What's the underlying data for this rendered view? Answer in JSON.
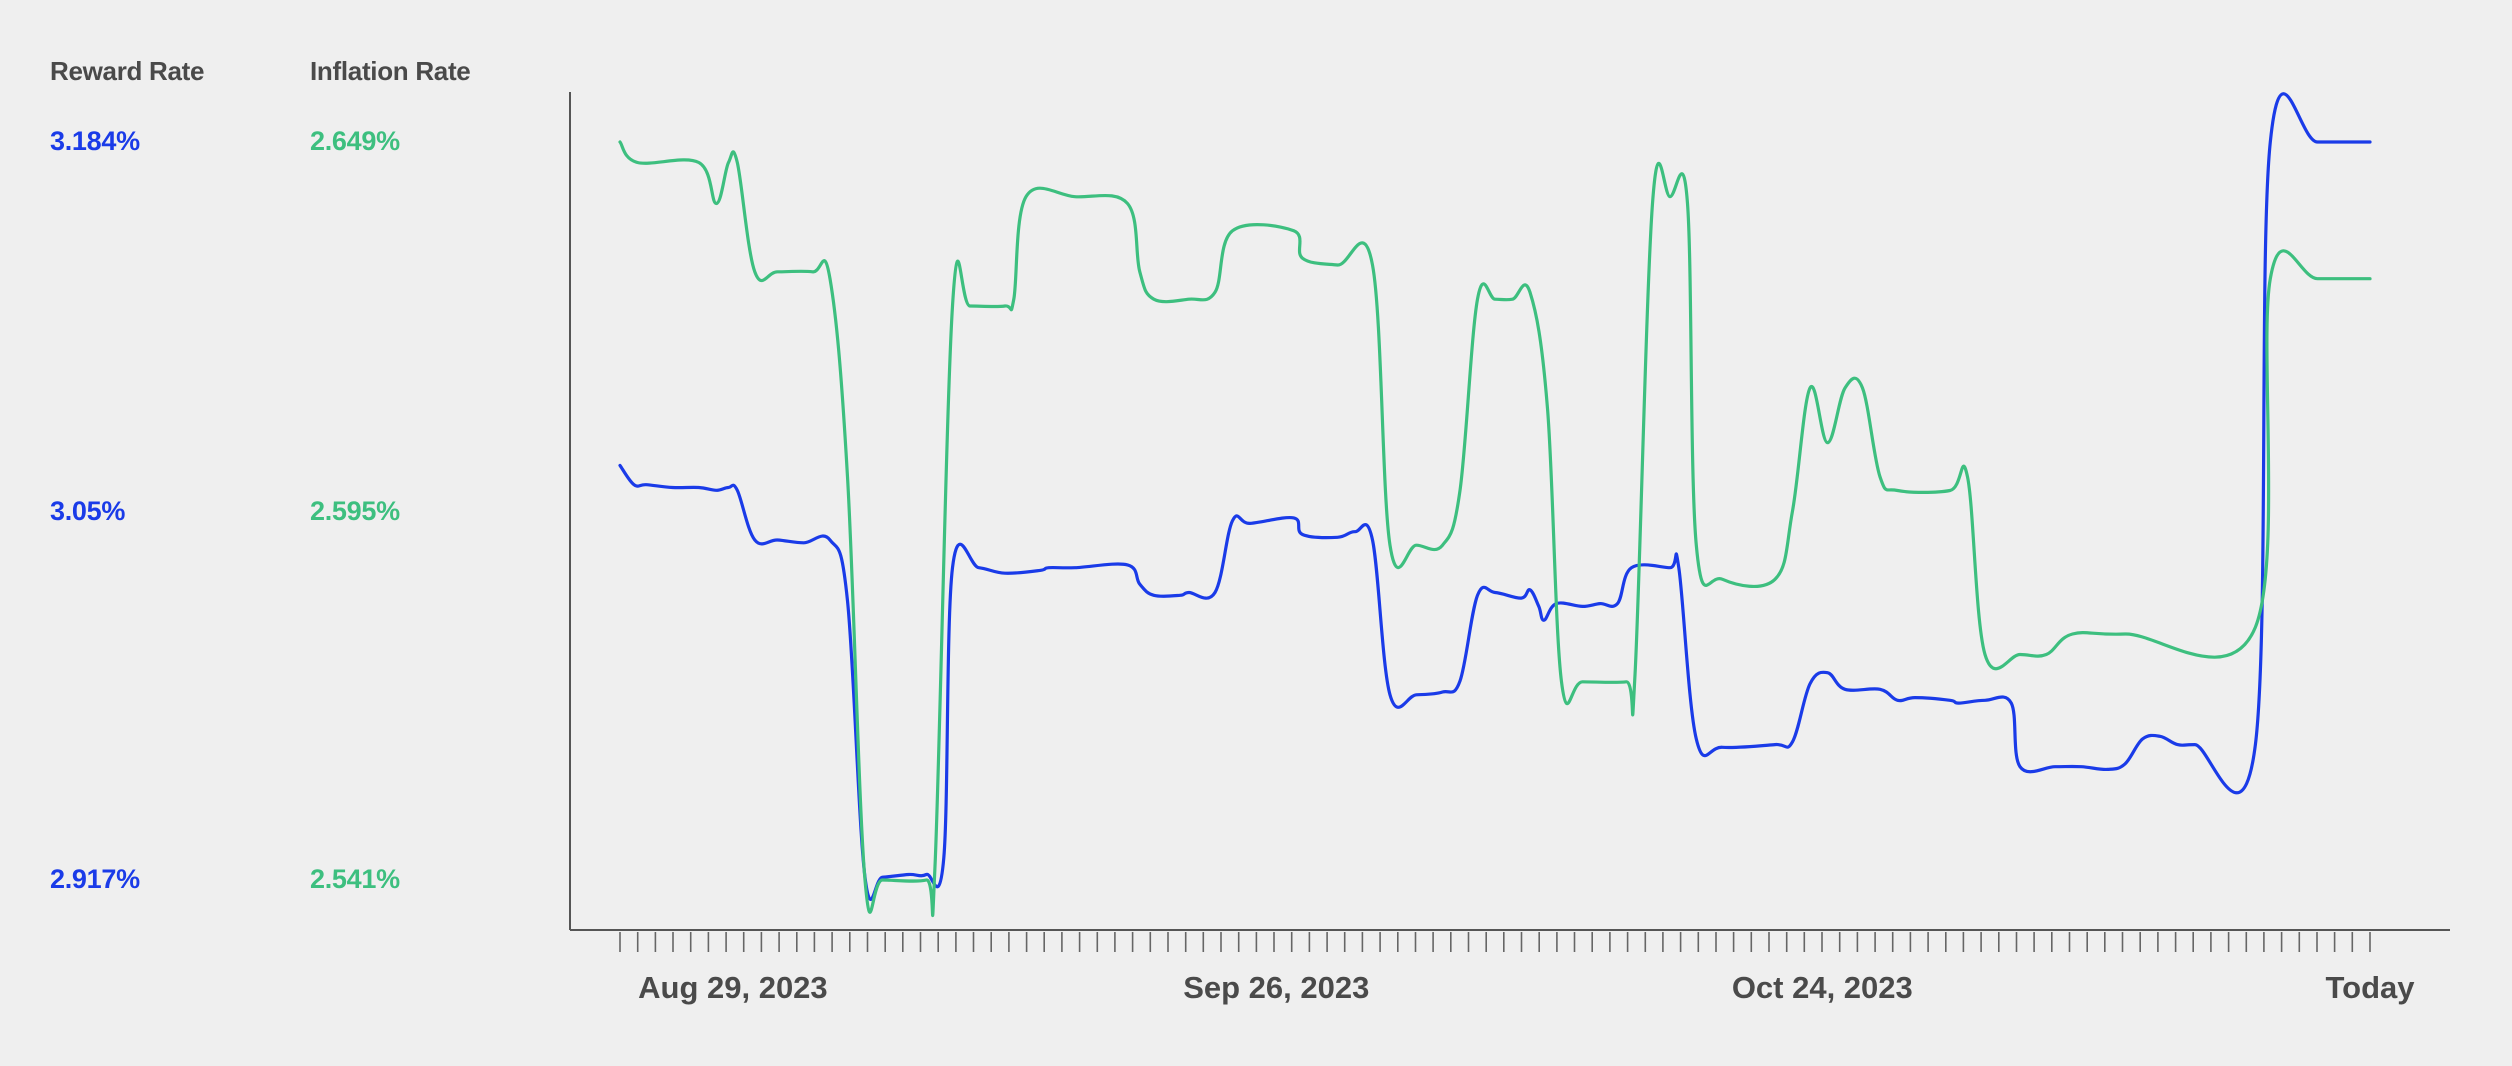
{
  "legend": {
    "reward_title": "Reward Rate",
    "inflation_title": "Inflation Rate"
  },
  "colors": {
    "reward": "#1a3be8",
    "inflation": "#3dbf7f",
    "axis": "#555555",
    "text": "#4a4a4a",
    "background": "#efefef"
  },
  "chart_data": {
    "type": "line",
    "x_labels": [
      "Aug 29, 2023",
      "Sep 26, 2023",
      "Oct 24, 2023",
      "Today"
    ],
    "x_label_positions": [
      0.0645,
      0.375,
      0.687,
      1.0
    ],
    "series": [
      {
        "name": "Reward Rate",
        "color": "#1a3be8",
        "ylim": [
          2.917,
          3.184
        ],
        "tick_labels": [
          "3.184%",
          "3.05%",
          "2.917%"
        ],
        "points": [
          [
            0.0,
            3.067
          ],
          [
            0.008,
            3.06
          ],
          [
            0.015,
            3.06
          ],
          [
            0.03,
            3.059
          ],
          [
            0.045,
            3.059
          ],
          [
            0.055,
            3.058
          ],
          [
            0.062,
            3.059
          ],
          [
            0.067,
            3.058
          ],
          [
            0.077,
            3.04
          ],
          [
            0.09,
            3.04
          ],
          [
            0.105,
            3.039
          ],
          [
            0.12,
            3.04
          ],
          [
            0.13,
            3.018
          ],
          [
            0.14,
            2.918
          ],
          [
            0.15,
            2.918
          ],
          [
            0.165,
            2.919
          ],
          [
            0.175,
            2.919
          ],
          [
            0.185,
            2.925
          ],
          [
            0.19,
            3.03
          ],
          [
            0.205,
            3.03
          ],
          [
            0.22,
            3.028
          ],
          [
            0.24,
            3.029
          ],
          [
            0.245,
            3.03
          ],
          [
            0.26,
            3.03
          ],
          [
            0.29,
            3.031
          ],
          [
            0.297,
            3.024
          ],
          [
            0.305,
            3.02
          ],
          [
            0.32,
            3.02
          ],
          [
            0.325,
            3.021
          ],
          [
            0.34,
            3.021
          ],
          [
            0.35,
            3.047
          ],
          [
            0.36,
            3.046
          ],
          [
            0.385,
            3.048
          ],
          [
            0.39,
            3.042
          ],
          [
            0.41,
            3.041
          ],
          [
            0.42,
            3.043
          ],
          [
            0.43,
            3.04
          ],
          [
            0.44,
            2.984
          ],
          [
            0.455,
            2.984
          ],
          [
            0.47,
            2.985
          ],
          [
            0.48,
            2.989
          ],
          [
            0.49,
            3.02
          ],
          [
            0.5,
            3.021
          ],
          [
            0.515,
            3.019
          ],
          [
            0.52,
            3.022
          ],
          [
            0.525,
            3.016
          ],
          [
            0.528,
            3.011
          ],
          [
            0.535,
            3.017
          ],
          [
            0.55,
            3.016
          ],
          [
            0.56,
            3.017
          ],
          [
            0.57,
            3.017
          ],
          [
            0.578,
            3.03
          ],
          [
            0.6,
            3.03
          ],
          [
            0.605,
            3.03
          ],
          [
            0.615,
            2.968
          ],
          [
            0.63,
            2.965
          ],
          [
            0.66,
            2.966
          ],
          [
            0.67,
            2.967
          ],
          [
            0.68,
            2.988
          ],
          [
            0.69,
            2.992
          ],
          [
            0.7,
            2.986
          ],
          [
            0.72,
            2.986
          ],
          [
            0.73,
            2.982
          ],
          [
            0.74,
            2.983
          ],
          [
            0.76,
            2.982
          ],
          [
            0.765,
            2.981
          ],
          [
            0.78,
            2.982
          ],
          [
            0.795,
            2.981
          ],
          [
            0.8,
            2.958
          ],
          [
            0.82,
            2.958
          ],
          [
            0.835,
            2.958
          ],
          [
            0.85,
            2.957
          ],
          [
            0.86,
            2.959
          ],
          [
            0.87,
            2.968
          ],
          [
            0.88,
            2.969
          ],
          [
            0.89,
            2.966
          ],
          [
            0.9,
            2.966
          ],
          [
            0.9345,
            2.966
          ],
          [
            0.943,
            3.184
          ],
          [
            0.97,
            3.184
          ],
          [
            1.0,
            3.184
          ]
        ]
      },
      {
        "name": "Inflation Rate",
        "color": "#3dbf7f",
        "ylim": [
          2.541,
          2.649
        ],
        "tick_labels": [
          "2.649%",
          "2.595%",
          "2.541%"
        ],
        "points": [
          [
            0.0,
            2.649
          ],
          [
            0.01,
            2.646
          ],
          [
            0.045,
            2.646
          ],
          [
            0.055,
            2.64
          ],
          [
            0.062,
            2.646
          ],
          [
            0.067,
            2.646
          ],
          [
            0.077,
            2.63
          ],
          [
            0.09,
            2.63
          ],
          [
            0.11,
            2.63
          ],
          [
            0.12,
            2.629
          ],
          [
            0.13,
            2.6
          ],
          [
            0.14,
            2.541
          ],
          [
            0.15,
            2.541
          ],
          [
            0.175,
            2.541
          ],
          [
            0.18,
            2.543
          ],
          [
            0.19,
            2.625
          ],
          [
            0.2,
            2.625
          ],
          [
            0.22,
            2.625
          ],
          [
            0.225,
            2.626
          ],
          [
            0.232,
            2.641
          ],
          [
            0.26,
            2.641
          ],
          [
            0.29,
            2.64
          ],
          [
            0.297,
            2.63
          ],
          [
            0.305,
            2.626
          ],
          [
            0.325,
            2.626
          ],
          [
            0.34,
            2.627
          ],
          [
            0.35,
            2.636
          ],
          [
            0.385,
            2.636
          ],
          [
            0.39,
            2.632
          ],
          [
            0.41,
            2.631
          ],
          [
            0.43,
            2.631
          ],
          [
            0.44,
            2.59
          ],
          [
            0.455,
            2.59
          ],
          [
            0.47,
            2.59
          ],
          [
            0.48,
            2.598
          ],
          [
            0.49,
            2.626
          ],
          [
            0.5,
            2.626
          ],
          [
            0.51,
            2.626
          ],
          [
            0.52,
            2.627
          ],
          [
            0.53,
            2.61
          ],
          [
            0.538,
            2.57
          ],
          [
            0.55,
            2.57
          ],
          [
            0.575,
            2.57
          ],
          [
            0.58,
            2.571
          ],
          [
            0.59,
            2.64
          ],
          [
            0.6,
            2.641
          ],
          [
            0.61,
            2.64
          ],
          [
            0.615,
            2.59
          ],
          [
            0.63,
            2.585
          ],
          [
            0.66,
            2.585
          ],
          [
            0.67,
            2.595
          ],
          [
            0.68,
            2.613
          ],
          [
            0.69,
            2.605
          ],
          [
            0.7,
            2.613
          ],
          [
            0.71,
            2.613
          ],
          [
            0.72,
            2.6
          ],
          [
            0.73,
            2.598
          ],
          [
            0.76,
            2.598
          ],
          [
            0.77,
            2.6
          ],
          [
            0.78,
            2.574
          ],
          [
            0.8,
            2.574
          ],
          [
            0.815,
            2.574
          ],
          [
            0.83,
            2.577
          ],
          [
            0.86,
            2.577
          ],
          [
            0.9345,
            2.578
          ],
          [
            0.943,
            2.629
          ],
          [
            0.97,
            2.629
          ],
          [
            1.0,
            2.629
          ]
        ]
      }
    ],
    "grid": false,
    "tick_count": 100
  }
}
